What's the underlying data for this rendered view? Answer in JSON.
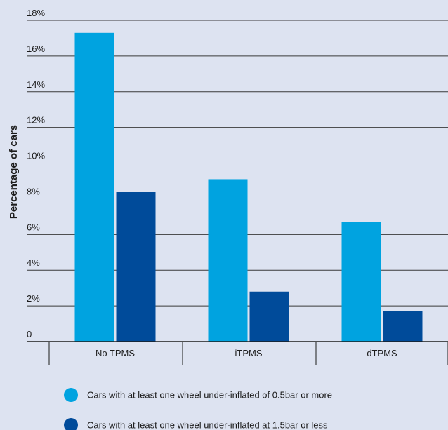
{
  "chart_data": {
    "type": "bar",
    "title": "",
    "xlabel": "",
    "ylabel": "Percentage of cars",
    "ylim": [
      0,
      18
    ],
    "yticks": [
      {
        "value": 0,
        "label": "0"
      },
      {
        "value": 2,
        "label": "2%"
      },
      {
        "value": 4,
        "label": "4%"
      },
      {
        "value": 6,
        "label": "6%"
      },
      {
        "value": 8,
        "label": "8%"
      },
      {
        "value": 10,
        "label": "10%"
      },
      {
        "value": 12,
        "label": "12%"
      },
      {
        "value": 14,
        "label": "14%"
      },
      {
        "value": 16,
        "label": "16%"
      },
      {
        "value": 18,
        "label": "18%"
      }
    ],
    "grid": true,
    "legend_position": "bottom",
    "categories": [
      "No TPMS",
      "iTPMS",
      "dTPMS"
    ],
    "series": [
      {
        "name": "Cars with at least one wheel under-inflated of 0.5bar or more",
        "color": "#00a3e0",
        "values": [
          17.3,
          9.1,
          6.7
        ]
      },
      {
        "name": "Cars with at least one wheel under-inflated at 1.5bar or less",
        "color": "#004b9a",
        "values": [
          8.4,
          2.8,
          1.7
        ]
      }
    ]
  }
}
